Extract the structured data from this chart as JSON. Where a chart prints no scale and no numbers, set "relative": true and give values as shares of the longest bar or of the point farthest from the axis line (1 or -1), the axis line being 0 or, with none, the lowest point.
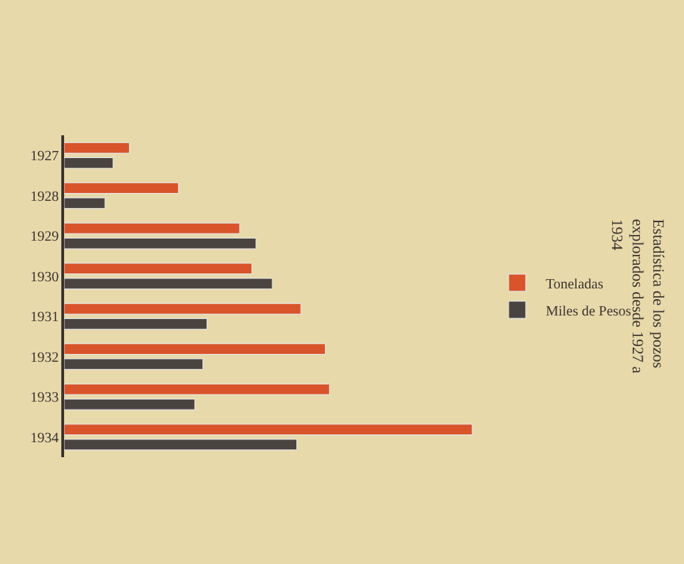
{
  "chart_data": {
    "type": "bar",
    "orientation": "horizontal",
    "relative": true,
    "title": "Estadística de los pozos explorados desde 1927 a 1934",
    "categories": [
      "1927",
      "1928",
      "1929",
      "1930",
      "1931",
      "1932",
      "1933",
      "1934"
    ],
    "series": [
      {
        "name": "Toneladas",
        "color": "#d9542a",
        "values": [
          0.16,
          0.28,
          0.43,
          0.46,
          0.58,
          0.64,
          0.65,
          1
        ]
      },
      {
        "name": "Miles de Pesos",
        "color": "#4a4440",
        "values": [
          0.12,
          0.1,
          0.47,
          0.51,
          0.35,
          0.34,
          0.32,
          0.57
        ]
      }
    ],
    "legend": "right"
  }
}
